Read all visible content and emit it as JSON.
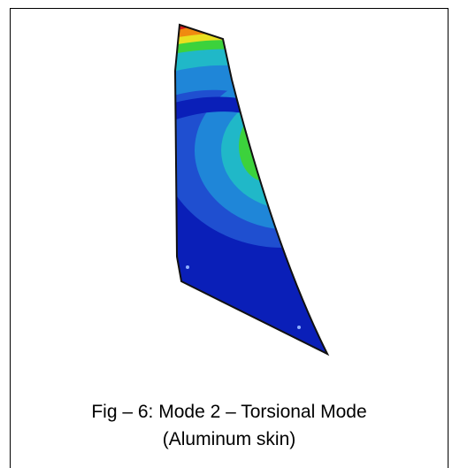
{
  "figure": {
    "caption_line_1": "Fig – 6:  Mode 2 – Torsional Mode",
    "caption_line_2": "(Aluminum skin)",
    "contour_colors": {
      "deep_blue": "#0a1fb8",
      "blue": "#1f4fd0",
      "light_blue": "#1f86d8",
      "cyan": "#20b8c8",
      "teal": "#28c8a0",
      "green": "#3cd23c",
      "yellow": "#e8e020",
      "orange": "#f08a10",
      "red": "#d81818"
    }
  }
}
